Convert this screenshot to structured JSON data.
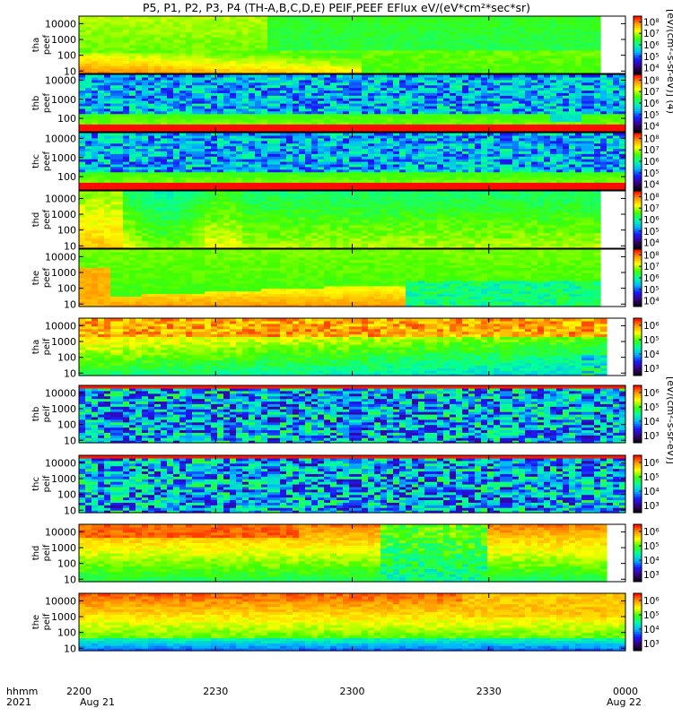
{
  "title": "P5, P1, P2, P3, P4 (TH-A,B,C,D,E) PEIF,PEEF EFlux eV/(eV*cm²*sec*sr)",
  "footer": {
    "row1_label": "hhmm",
    "row2_label": "2021",
    "start_date": "Aug 21",
    "end_date": "Aug 22"
  },
  "colorbar_titles": {
    "electron": "[eV/(cm²-s-sr-eV)] (4)",
    "ion": "[eV/(cm²-s-sr-eV)]"
  },
  "chart_data": {
    "type": "heatmap",
    "x_axis": {
      "ticks": [
        "2200",
        "2230",
        "2300",
        "2330",
        "0000"
      ],
      "range_minutes": [
        0,
        120
      ]
    },
    "y_scale": "log",
    "colormap": [
      "#000000",
      "#3b0080",
      "#1a1aff",
      "#00b7ff",
      "#00ffa0",
      "#42ff00",
      "#ffff00",
      "#ff9a00",
      "#ff0000"
    ],
    "panels": [
      {
        "id": "tha_peef",
        "label_top": "tha",
        "label_bottom": "peef",
        "species": "electron",
        "yticks": [
          "10",
          "100",
          "1000",
          "10000"
        ],
        "ylim": [
          7,
          30000
        ],
        "colorbar_ticks": [
          "10⁴",
          "10⁵",
          "10⁶",
          "10⁷",
          "10⁸"
        ]
      },
      {
        "id": "thb_peef",
        "label_top": "thb",
        "label_bottom": "peef",
        "species": "electron",
        "yticks": [
          "100",
          "1000",
          "10000"
        ],
        "ylim": [
          20,
          20000
        ],
        "colorbar_ticks": [
          "10⁴",
          "10⁵",
          "10⁶",
          "10⁷",
          "10⁸"
        ]
      },
      {
        "id": "thc_peef",
        "label_top": "thc",
        "label_bottom": "peef",
        "species": "electron",
        "yticks": [
          "100",
          "1000",
          "10000"
        ],
        "ylim": [
          20,
          20000
        ],
        "colorbar_ticks": [
          "10⁴",
          "10⁵",
          "10⁶",
          "10⁷",
          "10⁸"
        ]
      },
      {
        "id": "thd_peef",
        "label_top": "thd",
        "label_bottom": "peef",
        "species": "electron",
        "yticks": [
          "10",
          "100",
          "1000",
          "10000"
        ],
        "ylim": [
          7,
          30000
        ],
        "colorbar_ticks": [
          "10⁴",
          "10⁵",
          "10⁶",
          "10⁷",
          "10⁸"
        ]
      },
      {
        "id": "the_peef",
        "label_top": "the",
        "label_bottom": "peef",
        "species": "electron",
        "yticks": [
          "10",
          "100",
          "1000",
          "10000"
        ],
        "ylim": [
          7,
          30000
        ],
        "colorbar_ticks": [
          "10⁴",
          "10⁵",
          "10⁶",
          "10⁷",
          "10⁸"
        ]
      },
      {
        "id": "tha_peif",
        "label_top": "tha",
        "label_bottom": "peif",
        "species": "ion",
        "yticks": [
          "10",
          "100",
          "1000",
          "10000"
        ],
        "ylim": [
          7,
          30000
        ],
        "colorbar_ticks": [
          "10³",
          "10⁴",
          "10⁵",
          "10⁶"
        ]
      },
      {
        "id": "thb_peif",
        "label_top": "thb",
        "label_bottom": "peif",
        "species": "ion",
        "yticks": [
          "10",
          "100",
          "1000",
          "10000"
        ],
        "ylim": [
          7,
          30000
        ],
        "colorbar_ticks": [
          "10³",
          "10⁴",
          "10⁵",
          "10⁶"
        ]
      },
      {
        "id": "thc_peif",
        "label_top": "thc",
        "label_bottom": "peif",
        "species": "ion",
        "yticks": [
          "10",
          "100",
          "1000",
          "10000"
        ],
        "ylim": [
          7,
          30000
        ],
        "colorbar_ticks": [
          "10³",
          "10⁴",
          "10⁵",
          "10⁶"
        ]
      },
      {
        "id": "thd_peif",
        "label_top": "thd",
        "label_bottom": "peif",
        "species": "ion",
        "yticks": [
          "10",
          "100",
          "1000",
          "10000"
        ],
        "ylim": [
          7,
          30000
        ],
        "colorbar_ticks": [
          "10³",
          "10⁴",
          "10⁵",
          "10⁶"
        ]
      },
      {
        "id": "the_peif",
        "label_top": "the",
        "label_bottom": "peif",
        "species": "ion",
        "yticks": [
          "10",
          "100",
          "1000",
          "10000"
        ],
        "ylim": [
          7,
          30000
        ],
        "colorbar_ticks": [
          "10³",
          "10⁴",
          "10⁵",
          "10⁶"
        ]
      }
    ]
  }
}
